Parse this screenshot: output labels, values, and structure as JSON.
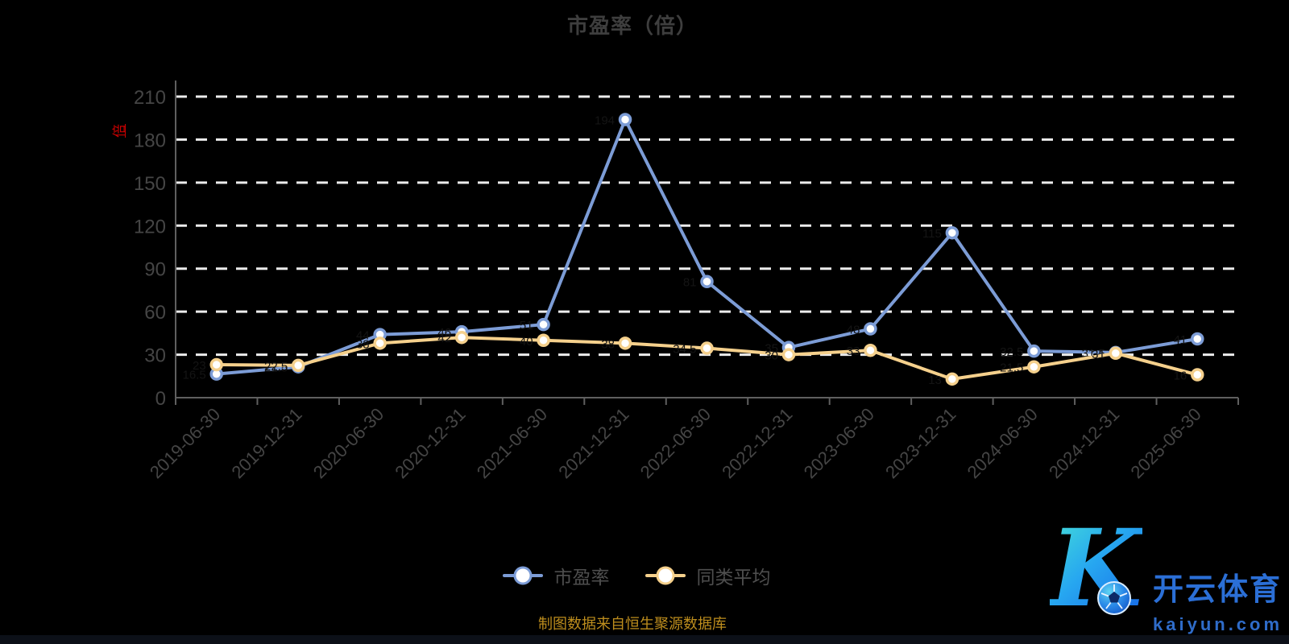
{
  "title": "市盈率（倍）",
  "y_axis": {
    "name": "倍"
  },
  "footer_note": "制图数据来自恒生聚源数据库",
  "watermark": {
    "monogram": "K",
    "brand": "开云体育",
    "site": "kaiyun.com"
  },
  "chart_data": {
    "type": "line",
    "title": "市盈率（倍）",
    "unit": "倍",
    "categories": [
      "2019-06-30",
      "2019-12-31",
      "2020-06-30",
      "2020-12-31",
      "2021-06-30",
      "2021-12-31",
      "2022-06-30",
      "2022-12-31",
      "2023-06-30",
      "2023-12-31",
      "2024-06-30",
      "2024-12-31",
      "2025-06-30"
    ],
    "series": [
      {
        "name": "市盈率",
        "color": "#7c9cd6",
        "values": [
          16.5,
          21.5,
          44,
          46,
          51,
          194,
          81,
          35,
          48,
          115,
          32.5,
          31.5,
          41
        ]
      },
      {
        "name": "同类平均",
        "color": "#f5d08c",
        "values": [
          23,
          22.5,
          38,
          42,
          40,
          38,
          34.5,
          30,
          33,
          13,
          21.5,
          31,
          16
        ]
      }
    ],
    "ylim": [
      0,
      210
    ],
    "y_ticks": [
      0,
      30,
      60,
      90,
      120,
      150,
      180,
      210
    ],
    "grid": true,
    "grid_style": "dashed",
    "legend_position": "bottom",
    "marker": "circle-white-fill"
  },
  "colors": {
    "background": "#000000",
    "grid": "#ececec",
    "axis_line": "#5f5f5f",
    "axis_label": "#454545",
    "title": "#3e3e3e",
    "legend_text": "#4e4e4e",
    "footer": "#bd8d1d",
    "axis_name_red": "#cc0000",
    "data_label": "#141414",
    "series_pe": "#7c9cd6",
    "series_avg": "#f5d08c",
    "logo_blue": "#2b6fd6"
  }
}
